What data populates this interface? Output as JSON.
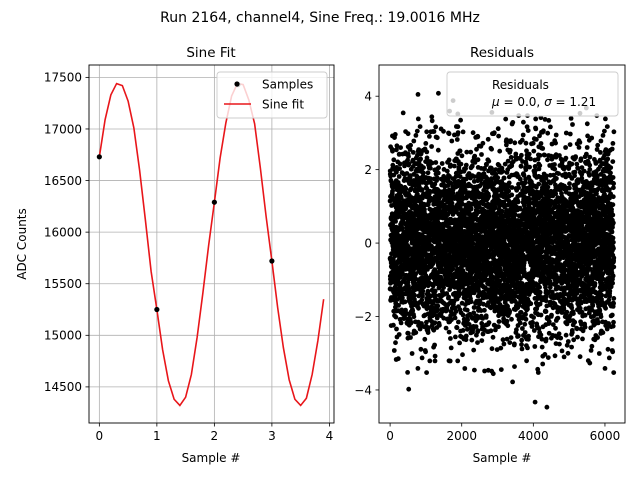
{
  "suptitle": "Run 2164, channel4, Sine Freq.: 19.0016 MHz",
  "colors": {
    "fit": "#e8161a",
    "samples": "#000000",
    "grid": "#b0b0b0"
  },
  "chart_data": [
    {
      "type": "scatter",
      "title": "Sine Fit",
      "xlabel": "Sample #",
      "ylabel": "ADC Counts",
      "xlim": [
        -0.18,
        4.08
      ],
      "ylim": [
        14150,
        17620
      ],
      "xticks": [
        0,
        1,
        2,
        3,
        4
      ],
      "xtick_labels": [
        "0",
        "1",
        "2",
        "3",
        "4"
      ],
      "yticks": [
        14500,
        15000,
        15500,
        16000,
        16500,
        17000,
        17500
      ],
      "ytick_labels": [
        "14500",
        "15000",
        "15500",
        "16000",
        "16500",
        "17000",
        "17500"
      ],
      "grid": true,
      "legend_position": "top-right",
      "series": [
        {
          "name": "Samples",
          "kind": "scatter",
          "x": [
            0,
            1,
            2,
            2.41,
            3
          ],
          "y": [
            16730,
            15250,
            16290,
            17430,
            15720
          ]
        },
        {
          "name": "Sine fit",
          "kind": "line",
          "x": [
            0,
            0.1,
            0.2,
            0.3,
            0.4,
            0.5,
            0.6,
            0.7,
            0.8,
            0.9,
            1.0,
            1.1,
            1.2,
            1.3,
            1.4,
            1.5,
            1.6,
            1.7,
            1.8,
            1.9,
            2.0,
            2.1,
            2.2,
            2.3,
            2.4,
            2.5,
            2.6,
            2.7,
            2.8,
            2.9,
            3.0,
            3.1,
            3.2,
            3.3,
            3.4,
            3.5,
            3.6,
            3.7,
            3.8,
            3.9
          ],
          "y": [
            16730,
            17090,
            17330,
            17440,
            17420,
            17270,
            17010,
            16600,
            16120,
            15620,
            15250,
            14860,
            14560,
            14380,
            14320,
            14400,
            14620,
            14980,
            15410,
            15870,
            16290,
            16720,
            17060,
            17320,
            17440,
            17430,
            17280,
            17050,
            16620,
            16150,
            15720,
            15270,
            14880,
            14570,
            14380,
            14320,
            14390,
            14620,
            14950,
            15350
          ]
        }
      ]
    },
    {
      "type": "scatter",
      "title": "Residuals",
      "xlabel": "Sample #",
      "ylabel": "",
      "xlim": [
        -310,
        6560
      ],
      "ylim": [
        -4.9,
        4.85
      ],
      "xticks": [
        0,
        2000,
        4000,
        6000
      ],
      "xtick_labels": [
        "0",
        "2000",
        "4000",
        "6000"
      ],
      "yticks": [
        -4,
        -2,
        0,
        2,
        4
      ],
      "ytick_labels": [
        "−4",
        "−2",
        "0",
        "2",
        "4"
      ],
      "grid": false,
      "legend_position": "top-right",
      "series": [
        {
          "name": "Residuals",
          "kind": "scatter",
          "n_points": 6250,
          "x_range": [
            0,
            6249
          ],
          "mean": 0.0,
          "std": 1.21,
          "notable_points": [
            {
              "x": 520,
              "y": -3.98
            },
            {
              "x": 780,
              "y": 4.05
            },
            {
              "x": 1350,
              "y": 4.08
            },
            {
              "x": 3420,
              "y": -3.78
            },
            {
              "x": 4050,
              "y": -4.33
            },
            {
              "x": 4380,
              "y": -4.47
            },
            {
              "x": 1760,
              "y": 3.88
            },
            {
              "x": 5480,
              "y": 3.68
            }
          ]
        }
      ],
      "legend_stats": {
        "prefix": "μ = ",
        "mu": "0.0",
        "separator": ", ",
        "sigma_prefix": "σ = ",
        "sigma": "1.21"
      }
    }
  ]
}
